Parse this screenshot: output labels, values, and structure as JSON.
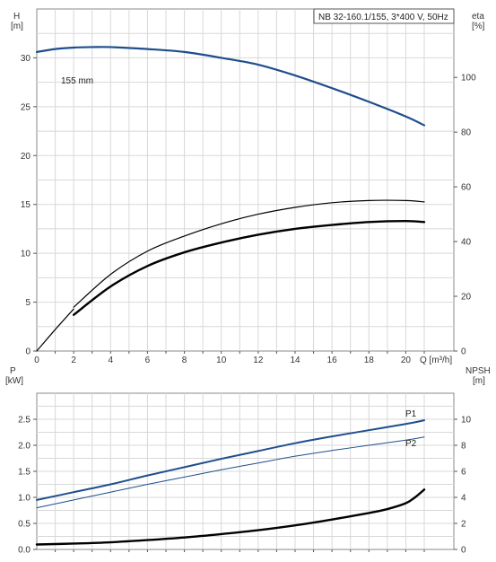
{
  "chart_data": [
    {
      "type": "line",
      "title": "NB 32-160.1/155, 3*400 V, 50Hz",
      "xlabel": "Q [m³/h]",
      "ylabel_left": [
        "H",
        "[m]"
      ],
      "ylabel_right": [
        "eta",
        "[%]"
      ],
      "xlim": [
        0,
        22
      ],
      "ylim_left": [
        0,
        35
      ],
      "ylim_right": [
        0,
        125
      ],
      "x_ticks": [
        "0",
        "2",
        "4",
        "6",
        "8",
        "10",
        "12",
        "14",
        "16",
        "18",
        "20"
      ],
      "y_left_ticks": [
        "0",
        "5",
        "10",
        "15",
        "20",
        "25",
        "30"
      ],
      "y_right_ticks": [
        "0",
        "20",
        "40",
        "60",
        "80",
        "100"
      ],
      "grid": true,
      "annotations": [
        {
          "text": "155 mm"
        }
      ],
      "series": [
        {
          "axis": "left",
          "color": "#1f4e8c",
          "width": 2.2,
          "x": [
            0,
            1,
            2,
            3,
            4,
            6,
            8,
            10,
            12,
            14,
            16,
            18,
            20,
            21
          ],
          "y": [
            30.6,
            30.9,
            31.05,
            31.1,
            31.1,
            30.9,
            30.6,
            30.0,
            29.3,
            28.2,
            26.9,
            25.5,
            24.0,
            23.1
          ]
        },
        {
          "axis": "left",
          "color": "#000000",
          "width": 1.2,
          "x": [
            0,
            1,
            2
          ],
          "y": [
            0,
            2.2,
            4.3
          ]
        },
        {
          "axis": "right",
          "color": "#000000",
          "width": 1.2,
          "x": [
            2,
            4,
            6,
            8,
            10,
            12,
            14,
            16,
            18,
            20,
            21
          ],
          "y": [
            16,
            28,
            36.5,
            42,
            46.5,
            50,
            52.5,
            54.2,
            55,
            55,
            54.5
          ]
        },
        {
          "axis": "left",
          "color": "#000000",
          "width": 2.4,
          "x": [
            2,
            4,
            6,
            8,
            10,
            12,
            14,
            16,
            18,
            20,
            21
          ],
          "y": [
            3.7,
            6.6,
            8.7,
            10.1,
            11.1,
            11.9,
            12.5,
            12.9,
            13.2,
            13.3,
            13.2
          ]
        }
      ]
    },
    {
      "type": "line",
      "xlabel": "",
      "ylabel_left": [
        "P",
        "[kW]"
      ],
      "ylabel_right": [
        "NPSH",
        "[m]"
      ],
      "xlim": [
        0,
        22
      ],
      "ylim_left": [
        0,
        3.0
      ],
      "ylim_right": [
        0,
        12
      ],
      "y_left_ticks": [
        "0.0",
        "0.5",
        "1.0",
        "1.5",
        "2.0",
        "2.5"
      ],
      "y_right_ticks": [
        "0",
        "2",
        "4",
        "6",
        "8",
        "10"
      ],
      "grid": true,
      "series": [
        {
          "name": "P1",
          "axis": "left",
          "color": "#1f4e8c",
          "width": 2.0,
          "x": [
            0,
            2,
            4,
            6,
            8,
            10,
            12,
            14,
            16,
            18,
            20,
            21
          ],
          "y": [
            0.95,
            1.1,
            1.25,
            1.42,
            1.58,
            1.74,
            1.89,
            2.04,
            2.17,
            2.29,
            2.41,
            2.48
          ]
        },
        {
          "name": "P2",
          "axis": "left",
          "color": "#1f4e8c",
          "width": 1.0,
          "x": [
            0,
            2,
            4,
            6,
            8,
            10,
            12,
            14,
            16,
            18,
            20,
            21
          ],
          "y": [
            0.8,
            0.95,
            1.1,
            1.25,
            1.39,
            1.53,
            1.66,
            1.79,
            1.9,
            2.0,
            2.1,
            2.16
          ]
        },
        {
          "axis": "right",
          "color": "#000000",
          "width": 2.4,
          "x": [
            0,
            2,
            4,
            6,
            8,
            10,
            12,
            14,
            16,
            18,
            19,
            20,
            20.5,
            21
          ],
          "y": [
            0.38,
            0.45,
            0.55,
            0.72,
            0.92,
            1.18,
            1.48,
            1.85,
            2.3,
            2.8,
            3.1,
            3.55,
            4.0,
            4.6
          ]
        }
      ]
    }
  ]
}
